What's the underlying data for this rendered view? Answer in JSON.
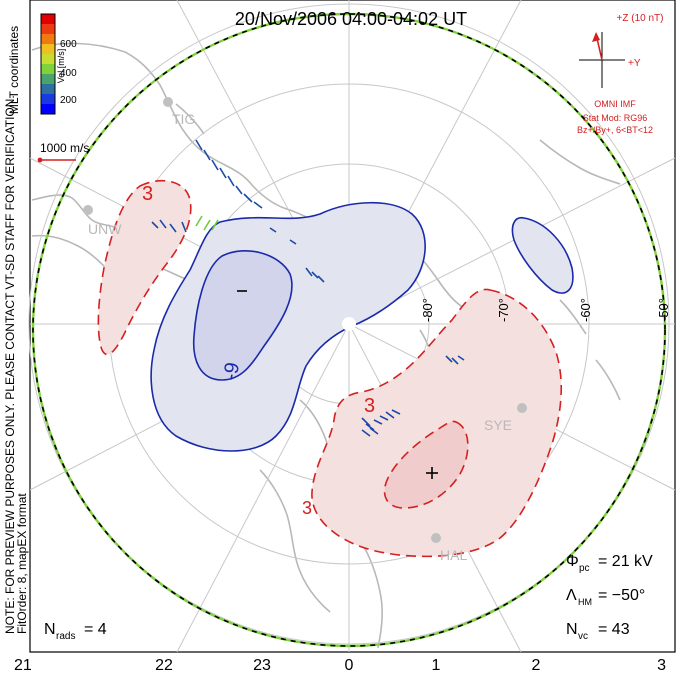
{
  "header": {
    "title": "20/Nov/2006 04:00-04:02 UT"
  },
  "colorbar": {
    "label": "Vel [m/s]",
    "ticks": [
      "600",
      "400",
      "200"
    ],
    "colors": [
      "#0000ff",
      "#2d6f9e",
      "#4aa36a",
      "#7fd23a",
      "#c8dc32",
      "#f0c020",
      "#f07a10",
      "#ee3a10",
      "#e00000"
    ]
  },
  "coords_label": "MLT coordinates",
  "scale_label": "1000 m/s",
  "side_notes": {
    "line1": "NOTE: FOR PREVIEW PURPOSES ONLY. PLEASE CONTACT VT-SD STAFF FOR VERIFICATION.",
    "line2": "FitOrder: 8, mapEX format"
  },
  "imf": {
    "z_label": "+Z (10 nT)",
    "y_label": "+Y",
    "source": "OMNI IMF",
    "model": "Stat Mod: RG96",
    "bin": "Bz+/By+, 6<BT<12"
  },
  "stations": {
    "tig": "TIG",
    "unw": "UNW",
    "sye": "SYE",
    "hal": "HAL"
  },
  "lat_labels": [
    "-80°",
    "-70°",
    "-60°",
    "-50°"
  ],
  "contour_labels": {
    "red_top": "3",
    "blue_inner": "-9",
    "red_mid": "3",
    "red_bot": "3"
  },
  "stats": {
    "phi_pc_symbol": "Φ",
    "phi_pc_sub": "pc",
    "phi_pc_value": "= 21 kV",
    "lambda_symbol": "Λ",
    "lambda_sub": "HM",
    "lambda_value": "= −50°",
    "nvc_symbol": "N",
    "nvc_sub": "vc",
    "nvc_value": "= 43",
    "nrads_symbol": "N",
    "nrads_sub": "rads",
    "nrads_value": "= 4"
  },
  "mlt_axis": [
    "21",
    "22",
    "23",
    "0",
    "1",
    "2",
    "3"
  ],
  "marks": {
    "min": "−",
    "max": "+"
  },
  "map_colors": {
    "negative_fill": "#e2e4ef",
    "negative_inner_fill": "#d2d4ec",
    "negative_line": "#1a2aaa",
    "positive_fill": "#f5e0e0",
    "positive_inner_fill": "#f0cccc",
    "positive_line": "#d42020",
    "coast": "#b8b8b8",
    "grid": "#c8c8c8",
    "boundary_green": "#7fd23a",
    "boundary_black": "#000000"
  }
}
